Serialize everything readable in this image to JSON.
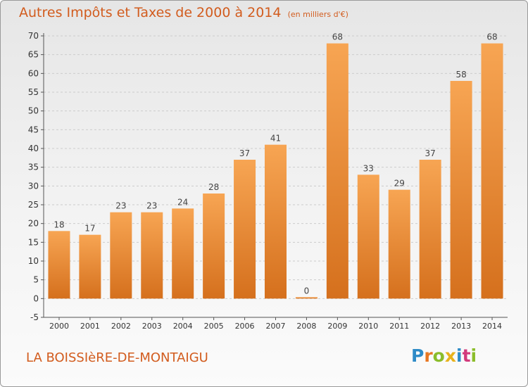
{
  "title": "Autres Impôts et Taxes de 2000 à 2014",
  "unit_label": "(en milliers d'€)",
  "place_name": "LA BOISSIèRE-DE-MONTAIGU",
  "logo": {
    "text": "Proxiti",
    "letters": [
      "P",
      "r",
      "o",
      "x",
      "i",
      "t",
      "i"
    ],
    "colors": [
      "#2e8bc7",
      "#e87722",
      "#8bbd2b",
      "#e8b21c",
      "#2e8bc7",
      "#d23a7c",
      "#8bbd2b"
    ]
  },
  "colors": {
    "bar_top": "#f7a553",
    "bar_bottom": "#d5701d",
    "title": "#d25c1e",
    "axis": "#555555",
    "grid": "#cccccc"
  },
  "chart_data": {
    "type": "bar",
    "categories": [
      "2000",
      "2001",
      "2002",
      "2003",
      "2004",
      "2005",
      "2006",
      "2007",
      "2008",
      "2009",
      "2010",
      "2011",
      "2012",
      "2013",
      "2014"
    ],
    "values": [
      18,
      17,
      23,
      23,
      24,
      28,
      37,
      41,
      0,
      68,
      33,
      29,
      37,
      58,
      68
    ],
    "ylim": [
      -5,
      70
    ],
    "yticks": [
      -5,
      0,
      5,
      10,
      15,
      20,
      25,
      30,
      35,
      40,
      45,
      50,
      55,
      60,
      65,
      70
    ],
    "grid": true,
    "data_labels": true
  }
}
